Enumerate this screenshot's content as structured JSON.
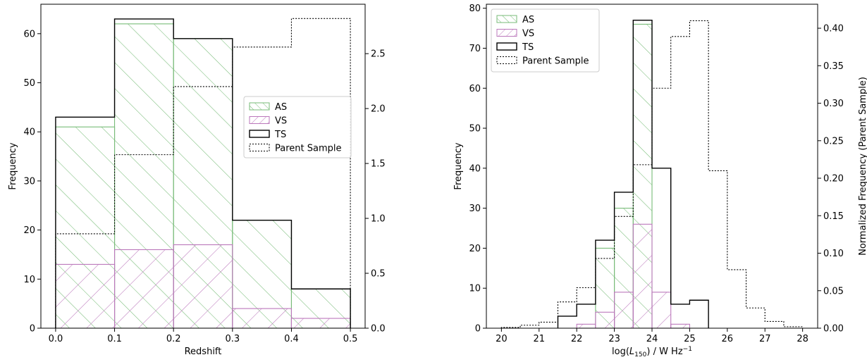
{
  "chart_data": [
    {
      "type": "bar",
      "histogram": true,
      "title": "",
      "xlabel": "Redshift",
      "ylabel": "Frequency",
      "y2label": "",
      "xlim": [
        -0.025,
        0.525
      ],
      "ylim": [
        0,
        66
      ],
      "y2lim": [
        0,
        2.95
      ],
      "xticks": [
        "0.0",
        "0.1",
        "0.2",
        "0.3",
        "0.4",
        "0.5"
      ],
      "yticks": [
        "0",
        "10",
        "20",
        "30",
        "40",
        "50",
        "60"
      ],
      "y2ticks": [
        "0.0",
        "0.5",
        "1.0",
        "1.5",
        "2.0",
        "2.5"
      ],
      "bin_edges": [
        0.0,
        0.1,
        0.2,
        0.3,
        0.4,
        0.5
      ],
      "legend_position": "center-right",
      "series": [
        {
          "name": "AS",
          "style": "hatch-green",
          "color": "#77bb77",
          "values": [
            41,
            62,
            59,
            22,
            8
          ]
        },
        {
          "name": "VS",
          "style": "hatch-purple",
          "color": "#bb77bb",
          "values": [
            13,
            16,
            17,
            4,
            2
          ]
        },
        {
          "name": "TS",
          "style": "step-black",
          "color": "#000000",
          "values": [
            43,
            63,
            59,
            22,
            8
          ]
        },
        {
          "name": "Parent Sample",
          "style": "dotted",
          "color": "#000000",
          "axis": "right",
          "values": [
            0.86,
            1.58,
            2.2,
            2.56,
            2.82
          ]
        }
      ]
    },
    {
      "type": "bar",
      "histogram": true,
      "title": "",
      "xlabel": "log(L150) / W Hz−1",
      "ylabel": "Frequency",
      "y2label": "Normalized Frequency (Parent Sample)",
      "xlim": [
        19.6,
        28.4
      ],
      "ylim": [
        0,
        81
      ],
      "y2lim": [
        0,
        0.432
      ],
      "xticks": [
        "20",
        "21",
        "22",
        "23",
        "24",
        "25",
        "26",
        "27",
        "28"
      ],
      "yticks": [
        "0",
        "10",
        "20",
        "30",
        "40",
        "50",
        "60",
        "70",
        "80"
      ],
      "y2ticks": [
        "0.00",
        "0.05",
        "0.10",
        "0.15",
        "0.20",
        "0.25",
        "0.30",
        "0.35",
        "0.40"
      ],
      "bin_edges_AS_VS_TS": [
        21.5,
        22.0,
        22.5,
        23.0,
        23.5,
        24.0,
        24.5,
        25.0,
        25.5
      ],
      "bin_edges_parent": [
        20.0,
        20.5,
        21.0,
        21.5,
        22.0,
        22.5,
        23.0,
        23.5,
        24.0,
        24.5,
        25.0,
        25.5,
        26.0,
        26.5,
        27.0,
        27.5,
        28.0
      ],
      "legend_position": "top-left",
      "series": [
        {
          "name": "AS",
          "style": "hatch-green",
          "color": "#77bb77",
          "values": [
            0,
            0,
            20,
            30,
            76,
            0,
            0,
            0
          ]
        },
        {
          "name": "VS",
          "style": "hatch-purple",
          "color": "#bb77bb",
          "values": [
            0,
            1,
            4,
            9,
            26,
            9,
            1,
            0
          ]
        },
        {
          "name": "TS",
          "style": "step-black",
          "color": "#000000",
          "values": [
            3,
            6,
            22,
            34,
            77,
            40,
            6,
            7
          ]
        },
        {
          "name": "Parent Sample",
          "style": "dotted",
          "color": "#000000",
          "axis": "right",
          "values": [
            0.001,
            0.004,
            0.008,
            0.035,
            0.054,
            0.093,
            0.149,
            0.218,
            0.32,
            0.389,
            0.41,
            0.21,
            0.078,
            0.027,
            0.009,
            0.002
          ]
        }
      ]
    }
  ]
}
